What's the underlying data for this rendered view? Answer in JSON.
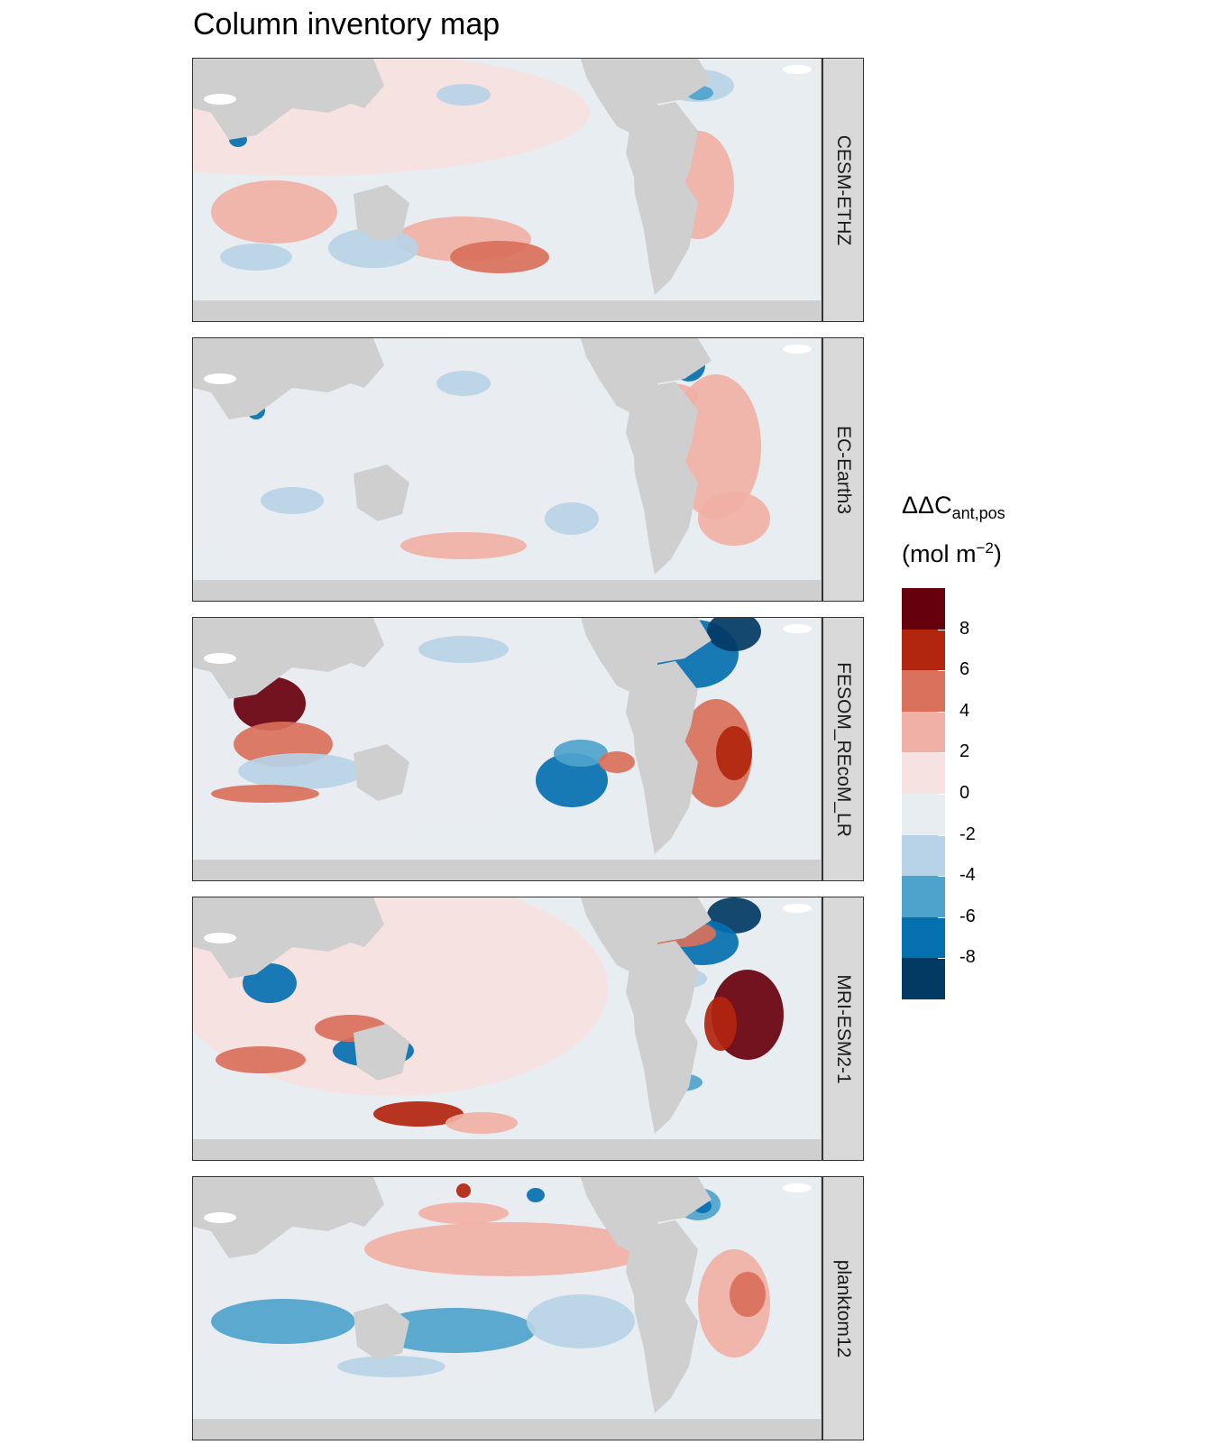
{
  "title": "Column inventory map",
  "panels": [
    {
      "label": "CESM-ETHZ"
    },
    {
      "label": "EC-Earth3"
    },
    {
      "label": "FESOM_REcoM_LR"
    },
    {
      "label": "MRI-ESM2-1"
    },
    {
      "label": "planktom12"
    }
  ],
  "legend": {
    "title_main": "ΔΔC",
    "title_sub": "ant,pos",
    "unit_prefix": "(mol m",
    "unit_sup": "−2",
    "unit_suffix": ")",
    "breaks": [
      "8",
      "6",
      "4",
      "2",
      "0",
      "-2",
      "-4",
      "-6",
      "-8"
    ],
    "colors": [
      "#67000d",
      "#b2250e",
      "#d9705b",
      "#f0b0a5",
      "#f6e2e0",
      "#e8edf1",
      "#b7d2e6",
      "#4ea3cc",
      "#0570b0",
      "#023a64"
    ]
  },
  "colors": {
    "land": "#cfcfcf",
    "ice": "#ffffff",
    "strip": "#d9d9d9"
  }
}
